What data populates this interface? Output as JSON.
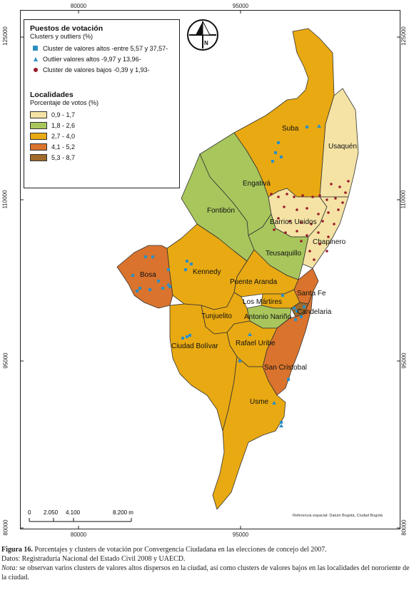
{
  "axes": {
    "x_ticks": [
      "80000",
      "95000"
    ],
    "y_ticks": [
      "125000",
      "110000",
      "95000",
      "80000"
    ]
  },
  "legend": {
    "points_title": "Puestos de votación",
    "points_subtitle": "Clusters y outliers (%)",
    "points": [
      {
        "label": "Cluster de valores altos -entre 5,57 y 37,57-",
        "color": "#2b8fc4",
        "shape": "square"
      },
      {
        "label": "Outlier valores altos -9,97 y 13,96-",
        "color": "#2b8fc4",
        "shape": "triangle"
      },
      {
        "label": "Cluster de valores bajos -0,39 y 1,93-",
        "color": "#9b1b2b",
        "shape": "circle"
      }
    ],
    "areas_title": "Localidades",
    "areas_subtitle": "Porcentaje de votos (%)",
    "classes": [
      {
        "label": "0,9 - 1,7",
        "color": "#f4e3a4"
      },
      {
        "label": "1,8 - 2,6",
        "color": "#a8c65c"
      },
      {
        "label": "2,7 - 4,0",
        "color": "#e8a912"
      },
      {
        "label": "4,1 - 5,2",
        "color": "#d9732d"
      },
      {
        "label": "5,3 - 8,7",
        "color": "#9f6a2a"
      }
    ]
  },
  "north_label": "N",
  "scale_bar": {
    "labels": [
      "0",
      "2.050",
      "4.100",
      "8.200 m"
    ]
  },
  "reference_note": "Referencia espacial: Datum Bogotá, Ciudad Bogotá",
  "localities": {
    "suba": "Suba",
    "usaquen": "Usaquén",
    "engativa": "Engativá",
    "fontibon": "Fontibón",
    "barrios_unidos": "Barrios Unidos",
    "chapinero": "Chapinero",
    "teusaquillo": "Teusaquillo",
    "bosa": "Bosa",
    "kennedy": "Kennedy",
    "puente_aranda": "Puente Aranda",
    "los_martires": "Los Mártires",
    "santa_fe": "Santa Fe",
    "antonio_narino": "Antonio Nariño",
    "candelaria": "Candelaria",
    "tunjuelito": "Tunjuelito",
    "ciudad_bolivar": "Ciudad Bolívar",
    "rafael_uribe": "Rafael Uribe",
    "san_cristobal": "San Cristobal",
    "usme": "Usme"
  },
  "caption": {
    "figure": "Figura 16.",
    "title": "Porcentajes y clusters de votación por Convergencia Ciudadana en las elecciones de concejo del 2007.",
    "source": "Datos: Registraduría Nacional del Estado Civil 2008 y UAECD.",
    "note_label": "Nota:",
    "note": "se observan varios clusters de valores altos dispersos en la ciudad, así como clusters de valores bajos en las localidades del nororiente de la ciudad."
  }
}
